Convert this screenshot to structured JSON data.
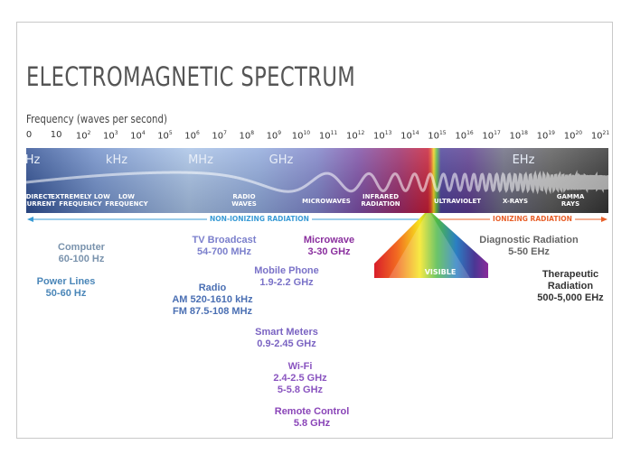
{
  "title": "ELECTROMAGNETIC SPECTRUM",
  "frequency_label": "Frequency (waves per second)",
  "ticks": [
    {
      "base": "0",
      "exp": ""
    },
    {
      "base": "10",
      "exp": ""
    },
    {
      "base": "10",
      "exp": "2"
    },
    {
      "base": "10",
      "exp": "3"
    },
    {
      "base": "10",
      "exp": "4"
    },
    {
      "base": "10",
      "exp": "5"
    },
    {
      "base": "10",
      "exp": "6"
    },
    {
      "base": "10",
      "exp": "7"
    },
    {
      "base": "10",
      "exp": "8"
    },
    {
      "base": "10",
      "exp": "9"
    },
    {
      "base": "10",
      "exp": "10"
    },
    {
      "base": "10",
      "exp": "11"
    },
    {
      "base": "10",
      "exp": "12"
    },
    {
      "base": "10",
      "exp": "13"
    },
    {
      "base": "10",
      "exp": "14"
    },
    {
      "base": "10",
      "exp": "15"
    },
    {
      "base": "10",
      "exp": "16"
    },
    {
      "base": "10",
      "exp": "17"
    },
    {
      "base": "10",
      "exp": "18"
    },
    {
      "base": "10",
      "exp": "19"
    },
    {
      "base": "10",
      "exp": "20"
    },
    {
      "base": "10",
      "exp": "21"
    }
  ],
  "units": {
    "hz": "Hz",
    "khz": "kHz",
    "mhz": "MHz",
    "ghz": "GHz",
    "ehz": "EHz"
  },
  "bands": {
    "direct_current": "DIRECT\nCURRENT",
    "extremely_low": "EXTREMELY LOW\nFREQUENCY",
    "low": "LOW\nFREQUENCY",
    "radio": "RADIO\nWAVES",
    "microwaves": "MICROWAVES",
    "infrared": "INFRARED\nRADIATION",
    "ultraviolet": "ULTRAVIOLET",
    "xrays": "X-RAYS",
    "gamma": "GAMMA\nRAYS",
    "visible": "VISIBLE"
  },
  "radiation": {
    "non_ionizing": "NON-IONIZING RADIATION",
    "ionizing": "IONIZING RADIATION"
  },
  "colors": {
    "radio_blue": "#5c7cc0",
    "microwave_purple": "#8a3d9a",
    "infrared_red": "#c21d35",
    "ionizing_orange": "#e8602a",
    "non_ionizing_blue": "#3a9bd5",
    "gray_text": "#6a8aaa"
  },
  "notes": {
    "computer": {
      "title": "Computer",
      "value": "60-100 Hz"
    },
    "power_lines": {
      "title": "Power Lines",
      "value": "50-60 Hz"
    },
    "tv": {
      "title": "TV Broadcast",
      "value": "54-700 MHz"
    },
    "radio": {
      "title": "Radio",
      "line1": "AM 520-1610 kHz",
      "line2": "FM 87.5-108 MHz"
    },
    "microwave": {
      "title": "Microwave",
      "value": "3-30 GHz"
    },
    "mobile": {
      "title": "Mobile Phone",
      "value": "1.9-2.2 GHz"
    },
    "smart_meters": {
      "title": "Smart Meters",
      "value": "0.9-2.45 GHz"
    },
    "wifi": {
      "title": "Wi-Fi",
      "line1": "2.4-2.5 GHz",
      "line2": "5-5.8 GHz"
    },
    "remote": {
      "title": "Remote Control",
      "value": "5.8 GHz"
    },
    "diagnostic": {
      "title": "Diagnostic Radiation",
      "value": "5-50 EHz"
    },
    "therapeutic": {
      "title": "Therapeutic",
      "line1": "Radiation",
      "line2": "500-5,000 EHz"
    }
  }
}
